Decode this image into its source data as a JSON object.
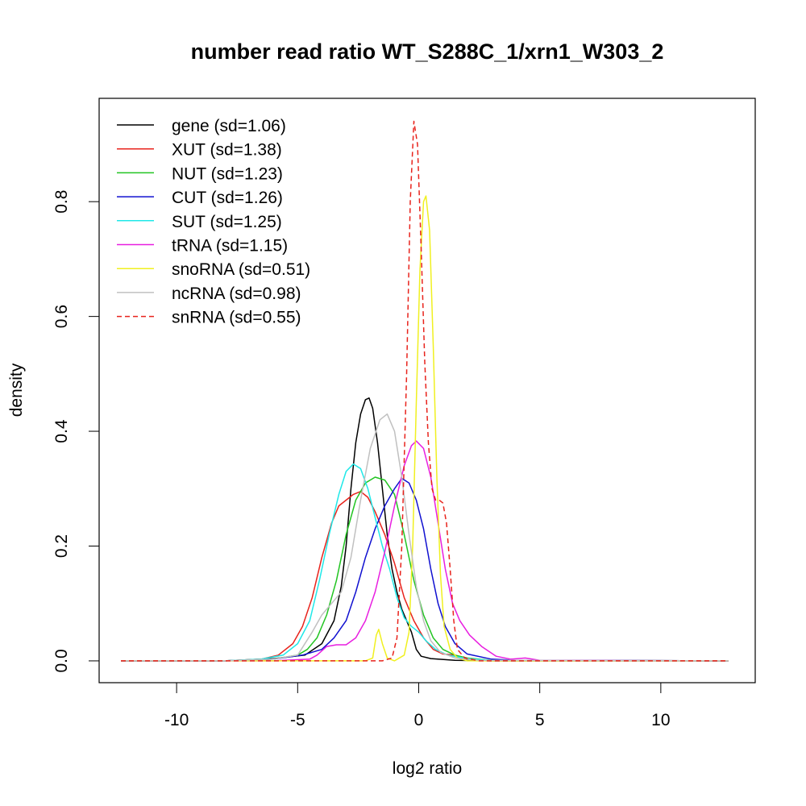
{
  "chart_data": {
    "type": "line",
    "title": "number read ratio WT_S288C_1/xrn1_W303_2",
    "xlabel": "log2 ratio",
    "ylabel": "density",
    "xlim": [
      -13.2,
      13.9
    ],
    "ylim": [
      -0.038,
      0.98
    ],
    "x_ticks": [
      -10,
      -5,
      0,
      5,
      10
    ],
    "x_tick_labels": [
      "-10",
      "-5",
      "0",
      "5",
      "10"
    ],
    "y_ticks": [
      0.0,
      0.2,
      0.4,
      0.6,
      0.8
    ],
    "y_tick_labels": [
      "0.0",
      "0.2",
      "0.4",
      "0.6",
      "0.8"
    ],
    "grid": false,
    "legend_position": "top-left",
    "series": [
      {
        "name": "gene (sd=1.06)",
        "color": "#000000",
        "dash": false,
        "points": [
          [
            -12.3,
            0
          ],
          [
            -8,
            0
          ],
          [
            -6,
            0.004
          ],
          [
            -4.7,
            0.01
          ],
          [
            -4,
            0.03
          ],
          [
            -3.5,
            0.07
          ],
          [
            -3.2,
            0.13
          ],
          [
            -3,
            0.2
          ],
          [
            -2.8,
            0.3
          ],
          [
            -2.6,
            0.38
          ],
          [
            -2.4,
            0.43
          ],
          [
            -2.2,
            0.455
          ],
          [
            -2.05,
            0.458
          ],
          [
            -1.9,
            0.44
          ],
          [
            -1.7,
            0.38
          ],
          [
            -1.5,
            0.3
          ],
          [
            -1.3,
            0.22
          ],
          [
            -1.1,
            0.16
          ],
          [
            -0.9,
            0.12
          ],
          [
            -0.7,
            0.09
          ],
          [
            -0.5,
            0.07
          ],
          [
            -0.3,
            0.05
          ],
          [
            -0.1,
            0.02
          ],
          [
            0.1,
            0.008
          ],
          [
            0.5,
            0.004
          ],
          [
            1.5,
            0.001
          ],
          [
            3,
            0
          ],
          [
            12.8,
            0
          ]
        ]
      },
      {
        "name": "XUT (sd=1.38)",
        "color": "#e8231c",
        "dash": false,
        "points": [
          [
            -12.3,
            0
          ],
          [
            -8,
            0
          ],
          [
            -6.5,
            0.003
          ],
          [
            -5.8,
            0.01
          ],
          [
            -5.2,
            0.03
          ],
          [
            -4.8,
            0.06
          ],
          [
            -4.4,
            0.11
          ],
          [
            -4,
            0.18
          ],
          [
            -3.6,
            0.24
          ],
          [
            -3.3,
            0.27
          ],
          [
            -3.0,
            0.28
          ],
          [
            -2.7,
            0.29
          ],
          [
            -2.4,
            0.295
          ],
          [
            -2.1,
            0.285
          ],
          [
            -1.8,
            0.26
          ],
          [
            -1.4,
            0.22
          ],
          [
            -1.0,
            0.17
          ],
          [
            -0.6,
            0.11
          ],
          [
            -0.2,
            0.07
          ],
          [
            0.2,
            0.04
          ],
          [
            0.6,
            0.02
          ],
          [
            1,
            0.012
          ],
          [
            1.5,
            0.01
          ],
          [
            2,
            0.004
          ],
          [
            3,
            0.001
          ],
          [
            12.8,
            0
          ]
        ]
      },
      {
        "name": "NUT (sd=1.23)",
        "color": "#22c422",
        "dash": false,
        "points": [
          [
            -12.3,
            0
          ],
          [
            -8,
            0
          ],
          [
            -6,
            0.003
          ],
          [
            -5,
            0.01
          ],
          [
            -4.6,
            0.02
          ],
          [
            -4.2,
            0.04
          ],
          [
            -3.8,
            0.08
          ],
          [
            -3.4,
            0.14
          ],
          [
            -3.0,
            0.22
          ],
          [
            -2.6,
            0.28
          ],
          [
            -2.2,
            0.31
          ],
          [
            -1.8,
            0.32
          ],
          [
            -1.4,
            0.315
          ],
          [
            -1.0,
            0.29
          ],
          [
            -0.6,
            0.22
          ],
          [
            -0.2,
            0.14
          ],
          [
            0.2,
            0.08
          ],
          [
            0.6,
            0.04
          ],
          [
            1.0,
            0.02
          ],
          [
            1.5,
            0.01
          ],
          [
            2,
            0.005
          ],
          [
            3,
            0.001
          ],
          [
            12.8,
            0
          ]
        ]
      },
      {
        "name": "CUT (sd=1.26)",
        "color": "#1010d0",
        "dash": false,
        "points": [
          [
            -12.3,
            0
          ],
          [
            -8,
            0
          ],
          [
            -6,
            0.003
          ],
          [
            -4.8,
            0.01
          ],
          [
            -4,
            0.02
          ],
          [
            -3.5,
            0.04
          ],
          [
            -3.0,
            0.07
          ],
          [
            -2.6,
            0.12
          ],
          [
            -2.2,
            0.18
          ],
          [
            -1.8,
            0.23
          ],
          [
            -1.4,
            0.27
          ],
          [
            -1.0,
            0.3
          ],
          [
            -0.7,
            0.318
          ],
          [
            -0.4,
            0.31
          ],
          [
            -0.1,
            0.28
          ],
          [
            0.2,
            0.23
          ],
          [
            0.5,
            0.16
          ],
          [
            0.8,
            0.1
          ],
          [
            1.1,
            0.06
          ],
          [
            1.5,
            0.03
          ],
          [
            2,
            0.012
          ],
          [
            3,
            0.003
          ],
          [
            4,
            0.001
          ],
          [
            12.8,
            0
          ]
        ]
      },
      {
        "name": "SUT (sd=1.25)",
        "color": "#1fe8e8",
        "dash": false,
        "points": [
          [
            -12.3,
            0
          ],
          [
            -8,
            0
          ],
          [
            -6.5,
            0.003
          ],
          [
            -5.6,
            0.01
          ],
          [
            -5,
            0.03
          ],
          [
            -4.5,
            0.07
          ],
          [
            -4.1,
            0.14
          ],
          [
            -3.7,
            0.22
          ],
          [
            -3.3,
            0.29
          ],
          [
            -3.0,
            0.33
          ],
          [
            -2.7,
            0.343
          ],
          [
            -2.4,
            0.335
          ],
          [
            -2.1,
            0.3
          ],
          [
            -1.8,
            0.25
          ],
          [
            -1.5,
            0.2
          ],
          [
            -1.2,
            0.16
          ],
          [
            -0.9,
            0.11
          ],
          [
            -0.6,
            0.075
          ],
          [
            -0.3,
            0.06
          ],
          [
            0,
            0.05
          ],
          [
            0.3,
            0.035
          ],
          [
            0.7,
            0.02
          ],
          [
            1.2,
            0.01
          ],
          [
            2,
            0.004
          ],
          [
            3,
            0.001
          ],
          [
            12.8,
            0
          ]
        ]
      },
      {
        "name": "tRNA (sd=1.15)",
        "color": "#e81ee0",
        "dash": false,
        "points": [
          [
            -12.3,
            0
          ],
          [
            -6,
            0
          ],
          [
            -4.5,
            0.003
          ],
          [
            -4.2,
            0.01
          ],
          [
            -3.8,
            0.025
          ],
          [
            -3.4,
            0.028
          ],
          [
            -3.0,
            0.028
          ],
          [
            -2.6,
            0.04
          ],
          [
            -2.2,
            0.07
          ],
          [
            -1.8,
            0.12
          ],
          [
            -1.4,
            0.19
          ],
          [
            -1.0,
            0.27
          ],
          [
            -0.6,
            0.34
          ],
          [
            -0.3,
            0.375
          ],
          [
            -0.1,
            0.383
          ],
          [
            0.2,
            0.37
          ],
          [
            0.5,
            0.32
          ],
          [
            0.8,
            0.24
          ],
          [
            1.1,
            0.16
          ],
          [
            1.4,
            0.1
          ],
          [
            1.7,
            0.07
          ],
          [
            2.1,
            0.045
          ],
          [
            2.6,
            0.025
          ],
          [
            3.2,
            0.008
          ],
          [
            3.8,
            0.003
          ],
          [
            4.4,
            0.005
          ],
          [
            5,
            0.001
          ],
          [
            12.8,
            0
          ]
        ]
      },
      {
        "name": "snoRNA (sd=0.51)",
        "color": "#f0f020",
        "dash": false,
        "points": [
          [
            -12.3,
            0
          ],
          [
            -2.2,
            0
          ],
          [
            -1.9,
            0.005
          ],
          [
            -1.75,
            0.045
          ],
          [
            -1.65,
            0.055
          ],
          [
            -1.5,
            0.03
          ],
          [
            -1.3,
            0.005
          ],
          [
            -1.0,
            0
          ],
          [
            -0.6,
            0.01
          ],
          [
            -0.4,
            0.05
          ],
          [
            -0.25,
            0.2
          ],
          [
            -0.1,
            0.45
          ],
          [
            0.05,
            0.68
          ],
          [
            0.2,
            0.8
          ],
          [
            0.3,
            0.81
          ],
          [
            0.45,
            0.75
          ],
          [
            0.6,
            0.55
          ],
          [
            0.75,
            0.32
          ],
          [
            0.9,
            0.15
          ],
          [
            1.05,
            0.06
          ],
          [
            1.3,
            0.02
          ],
          [
            1.6,
            0.005
          ],
          [
            2,
            0
          ],
          [
            12.8,
            0
          ]
        ]
      },
      {
        "name": "ncRNA (sd=0.98)",
        "color": "#c0c0c0",
        "dash": false,
        "points": [
          [
            -12.3,
            0
          ],
          [
            -8,
            0
          ],
          [
            -6,
            0.003
          ],
          [
            -5,
            0.01
          ],
          [
            -4.4,
            0.05
          ],
          [
            -4.0,
            0.08
          ],
          [
            -3.6,
            0.1
          ],
          [
            -3.2,
            0.12
          ],
          [
            -2.8,
            0.18
          ],
          [
            -2.4,
            0.28
          ],
          [
            -2.0,
            0.37
          ],
          [
            -1.6,
            0.42
          ],
          [
            -1.3,
            0.43
          ],
          [
            -1.0,
            0.4
          ],
          [
            -0.7,
            0.32
          ],
          [
            -0.4,
            0.22
          ],
          [
            -0.1,
            0.13
          ],
          [
            0.2,
            0.07
          ],
          [
            0.5,
            0.035
          ],
          [
            0.9,
            0.015
          ],
          [
            1.5,
            0.005
          ],
          [
            2.5,
            0.001
          ],
          [
            12.8,
            0
          ]
        ]
      },
      {
        "name": "snRNA (sd=0.55)",
        "color": "#e8231c",
        "dash": true,
        "points": [
          [
            -12.3,
            0
          ],
          [
            -1.5,
            0
          ],
          [
            -1.1,
            0.005
          ],
          [
            -0.9,
            0.04
          ],
          [
            -0.7,
            0.2
          ],
          [
            -0.5,
            0.5
          ],
          [
            -0.35,
            0.8
          ],
          [
            -0.2,
            0.94
          ],
          [
            -0.05,
            0.9
          ],
          [
            0.1,
            0.72
          ],
          [
            0.25,
            0.52
          ],
          [
            0.4,
            0.38
          ],
          [
            0.55,
            0.3
          ],
          [
            0.7,
            0.28
          ],
          [
            0.85,
            0.28
          ],
          [
            1.0,
            0.275
          ],
          [
            1.15,
            0.24
          ],
          [
            1.3,
            0.16
          ],
          [
            1.45,
            0.07
          ],
          [
            1.6,
            0.02
          ],
          [
            1.9,
            0.005
          ],
          [
            2.5,
            0
          ],
          [
            12.8,
            0
          ]
        ]
      }
    ]
  }
}
